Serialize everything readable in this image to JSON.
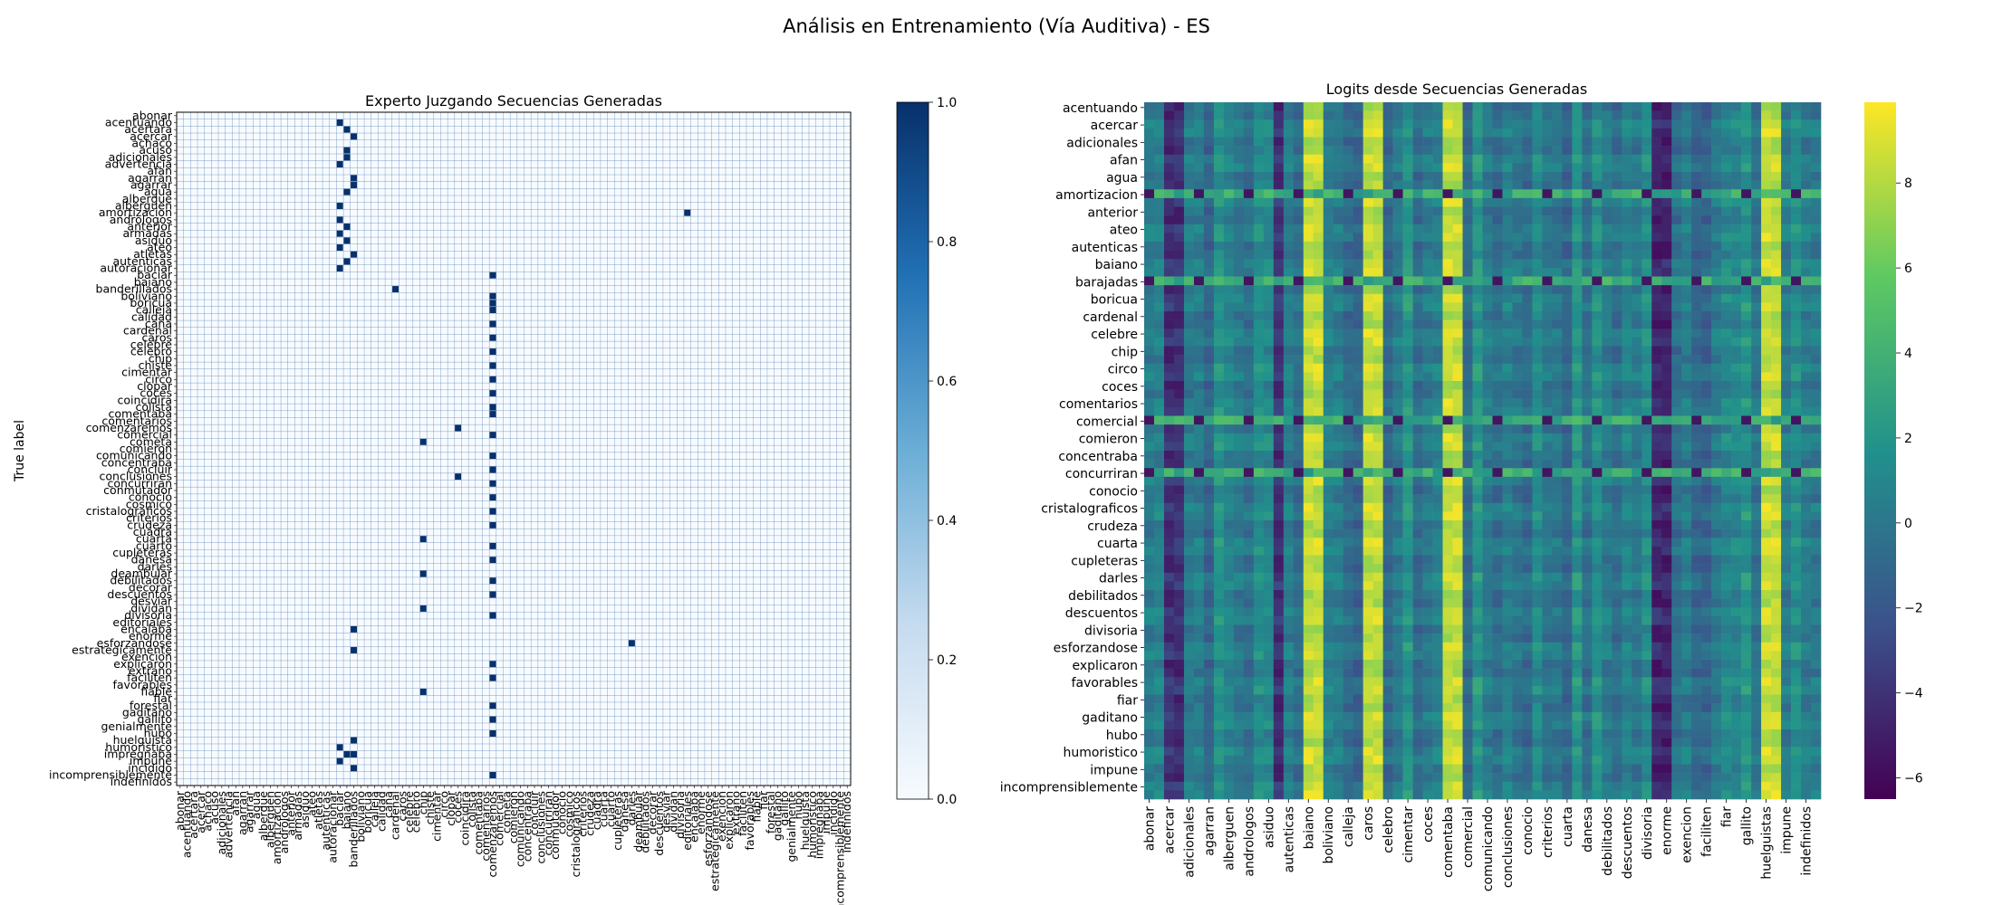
{
  "figure": {
    "suptitle": "Análisis en Entrenamiento (Vía Auditiva) - ES"
  },
  "chart_data": [
    {
      "type": "heatmap",
      "title": "Experto Juzgando Secuencias Generadas",
      "ylabel": "True label",
      "xlabel": "",
      "colormap": "Blues",
      "cell_borders": "white",
      "value_range": [
        0,
        1
      ],
      "colorbar_ticks": [
        "0.0",
        "0.2",
        "0.4",
        "0.6",
        "0.8",
        "1.0"
      ],
      "y_labels": [
        "abonar",
        "acentuando",
        "acertara",
        "acercar",
        "achaco",
        "acuso",
        "adicionales",
        "advertencia",
        "afan",
        "agarran",
        "agarrar",
        "agua",
        "albergue",
        "alberguen",
        "amortizacion",
        "andrologos",
        "anterior",
        "armadas",
        "asiduo",
        "ateo",
        "atletas",
        "autenticas",
        "autoracionar",
        "baciar",
        "baiano",
        "banderillados",
        "boliviano",
        "boricua",
        "calleja",
        "calidad",
        "cana",
        "cardenal",
        "caros",
        "celebre",
        "celebro",
        "chip",
        "chiste",
        "cimentar",
        "circo",
        "clopar",
        "coces",
        "coincidira",
        "colista",
        "comentaba",
        "comentarios",
        "comenzaremos",
        "comercial",
        "cometa",
        "comieron",
        "comunicando",
        "concentraba",
        "concluir",
        "conclusiones",
        "concurriran",
        "conmutador",
        "conocio",
        "cosmico",
        "cristalograficos",
        "criterios",
        "crudeza",
        "cuadra",
        "cuarta",
        "cuarto",
        "cupleteras",
        "danesa",
        "darles",
        "deambular",
        "debilitados",
        "decorar",
        "descuentos",
        "desviar",
        "dividan",
        "divisoria",
        "editoriales",
        "encalaba",
        "enorme",
        "esforzandose",
        "estrategicamente",
        "exencion",
        "explicaron",
        "extrano",
        "faciliten",
        "favorables",
        "fiable",
        "fiar",
        "forestal",
        "gaditano",
        "gallito",
        "genialmente",
        "hubo",
        "huelguista",
        "humoristico",
        "impregnaba",
        "impune",
        "incidido",
        "incomprensiblemente",
        "indefinidos"
      ],
      "x_labels": [
        "abonar",
        "acentuando",
        "acertara",
        "acercar",
        "achaco",
        "acuso",
        "adicionales",
        "advertencia",
        "afan",
        "agarran",
        "agarrar",
        "agua",
        "albergue",
        "alberguen",
        "amortizacion",
        "andrologos",
        "anterior",
        "armadas",
        "asiduo",
        "ateo",
        "atletas",
        "autenticas",
        "autoracionar",
        "baciar",
        "baiano",
        "banderillados",
        "boliviano",
        "boricua",
        "calleja",
        "calidad",
        "cana",
        "cardenal",
        "caros",
        "celebre",
        "celebro",
        "chip",
        "chiste",
        "cimentar",
        "circo",
        "clopar",
        "coces",
        "coincidira",
        "colista",
        "comentaba",
        "comentarios",
        "comenzaremos",
        "comercial",
        "cometa",
        "comieron",
        "comunicando",
        "concentraba",
        "concluir",
        "conclusiones",
        "concurriran",
        "conmutador",
        "conocio",
        "cosmico",
        "cristalograficos",
        "criterios",
        "crudeza",
        "cuadra",
        "cuarta",
        "cuarto",
        "cupleteras",
        "danesa",
        "darles",
        "deambular",
        "debilitados",
        "decorar",
        "descuentos",
        "desviar",
        "dividan",
        "divisoria",
        "editoriales",
        "encalaba",
        "enorme",
        "esforzandose",
        "estrategicamente",
        "exencion",
        "explicaron",
        "extrano",
        "faciliten",
        "favorables",
        "fiable",
        "fiar",
        "forestal",
        "gaditano",
        "gallito",
        "genialmente",
        "hubo",
        "huelguista",
        "humoristico",
        "impregnaba",
        "impune",
        "incidido",
        "incomprensiblemente",
        "indefinidos"
      ],
      "highlighted_cells": [
        {
          "row": 1,
          "col": 23,
          "value": 1
        },
        {
          "row": 2,
          "col": 24,
          "value": 1
        },
        {
          "row": 3,
          "col": 25,
          "value": 1
        },
        {
          "row": 5,
          "col": 24,
          "value": 1
        },
        {
          "row": 6,
          "col": 24,
          "value": 1
        },
        {
          "row": 7,
          "col": 23,
          "value": 1
        },
        {
          "row": 9,
          "col": 25,
          "value": 1
        },
        {
          "row": 10,
          "col": 25,
          "value": 1
        },
        {
          "row": 11,
          "col": 24,
          "value": 1
        },
        {
          "row": 13,
          "col": 23,
          "value": 1
        },
        {
          "row": 14,
          "col": 73,
          "value": 1
        },
        {
          "row": 15,
          "col": 23,
          "value": 1
        },
        {
          "row": 16,
          "col": 24,
          "value": 1
        },
        {
          "row": 17,
          "col": 23,
          "value": 1
        },
        {
          "row": 18,
          "col": 24,
          "value": 1
        },
        {
          "row": 19,
          "col": 23,
          "value": 1
        },
        {
          "row": 20,
          "col": 25,
          "value": 1
        },
        {
          "row": 21,
          "col": 24,
          "value": 1
        },
        {
          "row": 22,
          "col": 23,
          "value": 1
        },
        {
          "row": 23,
          "col": 45,
          "value": 1
        },
        {
          "row": 25,
          "col": 31,
          "value": 1
        },
        {
          "row": 26,
          "col": 45,
          "value": 1
        },
        {
          "row": 27,
          "col": 45,
          "value": 1
        },
        {
          "row": 28,
          "col": 45,
          "value": 1
        },
        {
          "row": 30,
          "col": 45,
          "value": 1
        },
        {
          "row": 32,
          "col": 45,
          "value": 1
        },
        {
          "row": 34,
          "col": 45,
          "value": 1
        },
        {
          "row": 36,
          "col": 45,
          "value": 1
        },
        {
          "row": 38,
          "col": 45,
          "value": 1
        },
        {
          "row": 40,
          "col": 45,
          "value": 1
        },
        {
          "row": 42,
          "col": 45,
          "value": 1
        },
        {
          "row": 43,
          "col": 45,
          "value": 1
        },
        {
          "row": 45,
          "col": 40,
          "value": 1
        },
        {
          "row": 46,
          "col": 45,
          "value": 1
        },
        {
          "row": 47,
          "col": 35,
          "value": 1
        },
        {
          "row": 49,
          "col": 45,
          "value": 1
        },
        {
          "row": 51,
          "col": 45,
          "value": 1
        },
        {
          "row": 52,
          "col": 40,
          "value": 1
        },
        {
          "row": 53,
          "col": 45,
          "value": 1
        },
        {
          "row": 55,
          "col": 45,
          "value": 1
        },
        {
          "row": 57,
          "col": 45,
          "value": 1
        },
        {
          "row": 59,
          "col": 45,
          "value": 1
        },
        {
          "row": 61,
          "col": 35,
          "value": 1
        },
        {
          "row": 62,
          "col": 45,
          "value": 1
        },
        {
          "row": 64,
          "col": 45,
          "value": 1
        },
        {
          "row": 66,
          "col": 35,
          "value": 1
        },
        {
          "row": 67,
          "col": 45,
          "value": 1
        },
        {
          "row": 69,
          "col": 45,
          "value": 1
        },
        {
          "row": 71,
          "col": 35,
          "value": 1
        },
        {
          "row": 72,
          "col": 45,
          "value": 1
        },
        {
          "row": 74,
          "col": 25,
          "value": 1
        },
        {
          "row": 76,
          "col": 65,
          "value": 1
        },
        {
          "row": 77,
          "col": 25,
          "value": 1
        },
        {
          "row": 79,
          "col": 45,
          "value": 1
        },
        {
          "row": 81,
          "col": 45,
          "value": 1
        },
        {
          "row": 83,
          "col": 35,
          "value": 1
        },
        {
          "row": 85,
          "col": 45,
          "value": 1
        },
        {
          "row": 87,
          "col": 45,
          "value": 1
        },
        {
          "row": 89,
          "col": 45,
          "value": 1
        },
        {
          "row": 90,
          "col": 25,
          "value": 1
        },
        {
          "row": 91,
          "col": 23,
          "value": 1
        },
        {
          "row": 92,
          "col": 24,
          "value": 1
        },
        {
          "row": 92,
          "col": 25,
          "value": 1
        },
        {
          "row": 93,
          "col": 23,
          "value": 1
        },
        {
          "row": 94,
          "col": 25,
          "value": 1
        },
        {
          "row": 95,
          "col": 45,
          "value": 1
        }
      ]
    },
    {
      "type": "heatmap",
      "title": "Logits desde Secuencias Generadas",
      "xlabel": "",
      "ylabel": "",
      "colormap": "viridis",
      "value_range": [
        -6.5,
        9.9
      ],
      "colorbar_ticks": [
        "−6",
        "−4",
        "−2",
        "0",
        "2",
        "4",
        "6",
        "8"
      ],
      "y_labels": [
        "acentuando",
        "acercar",
        "adicionales",
        "afan",
        "agua",
        "amortizacion",
        "anterior",
        "ateo",
        "autenticas",
        "baiano",
        "barajadas",
        "boricua",
        "cardenal",
        "celebre",
        "chip",
        "circo",
        "coces",
        "comentarios",
        "comercial",
        "comieron",
        "concentraba",
        "concurriran",
        "conocio",
        "cristalograficos",
        "crudeza",
        "cuarta",
        "cupleteras",
        "darles",
        "debilitados",
        "descuentos",
        "divisoria",
        "esforzandose",
        "explicaron",
        "favorables",
        "fiar",
        "gaditano",
        "hubo",
        "humoristico",
        "impune",
        "incomprensiblemente"
      ],
      "x_labels": [
        "abonar",
        "acercar",
        "adicionales",
        "agarran",
        "alberguen",
        "andrologos",
        "asiduo",
        "autenticas",
        "baiano",
        "boliviano",
        "calleja",
        "caros",
        "celebro",
        "cimentar",
        "coces",
        "comentaba",
        "comercial",
        "comunicando",
        "conclusiones",
        "conocio",
        "criterios",
        "cuarta",
        "danesa",
        "debilitados",
        "descuentos",
        "divisoria",
        "enorme",
        "exencion",
        "faciliten",
        "fiar",
        "gallito",
        "huelguistas",
        "impune",
        "indefinidos"
      ],
      "bright_columns": [
        "baiano",
        "caros",
        "comentaba",
        "huelguistas"
      ],
      "dark_columns": [
        "enorme"
      ],
      "anomalous_rows": [
        "amortizacion",
        "barajadas",
        "comercial",
        "concurriran"
      ]
    }
  ]
}
